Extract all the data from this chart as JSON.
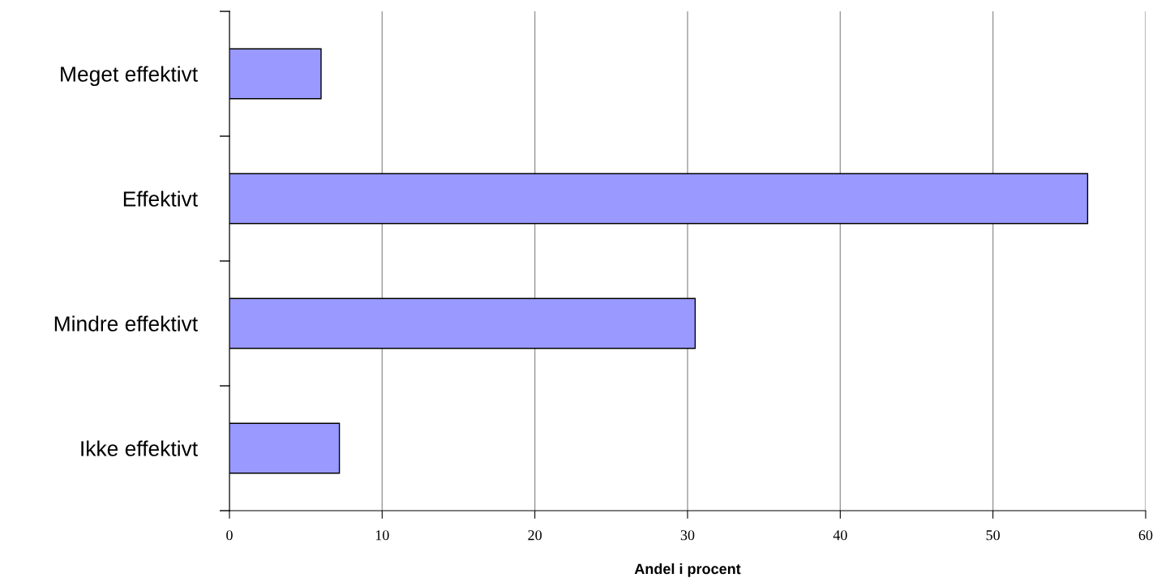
{
  "chart_data": {
    "type": "bar",
    "orientation": "horizontal",
    "xlabel": "Andel i procent",
    "categories": [
      "Meget effektivt",
      "Effektivt",
      "Mindre effektivt",
      "Ikke effektivt"
    ],
    "values": [
      6.0,
      56.2,
      30.5,
      7.2
    ],
    "color": "#9999ff",
    "xlim": [
      0,
      60
    ],
    "xticks": [
      0,
      10,
      20,
      30,
      40,
      50,
      60
    ],
    "grid": "x",
    "legend": false
  }
}
